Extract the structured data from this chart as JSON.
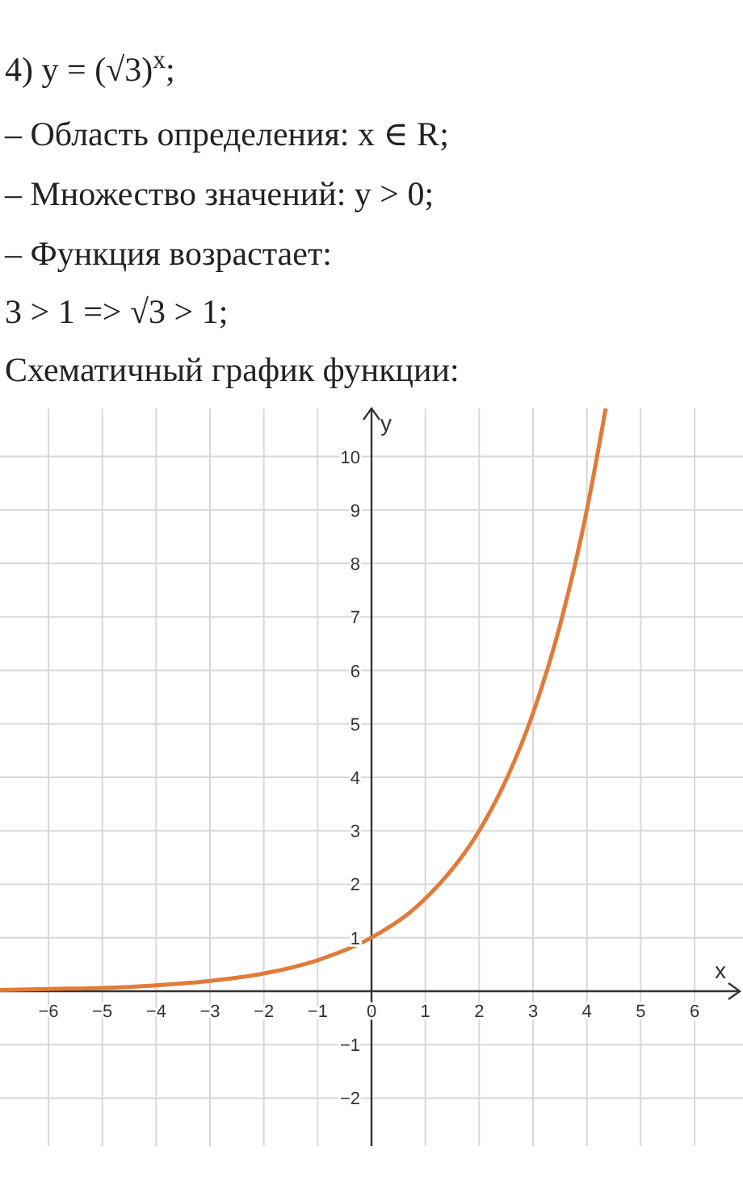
{
  "chart_data": {
    "type": "line",
    "title": "4) y = (√3)$^{x}$;",
    "annotations": [
      "– Область определения:  x ∈ R;",
      "– Множество значений:  y > 0;",
      "– Функция возрастает:",
      "3 > 1   =>   √3 > 1;",
      "Схематичный график функции:"
    ],
    "xlabel": "x",
    "ylabel": "y",
    "x": [
      -6.9,
      -6,
      -5,
      -4,
      -3,
      -2,
      -1,
      0,
      1,
      2,
      2.5,
      3,
      3.5,
      4,
      4.35
    ],
    "series": [
      {
        "color": "#e07b39",
        "values": [
          0.02,
          0.04,
          0.06,
          0.11,
          0.19,
          0.33,
          0.58,
          1,
          1.73,
          3,
          3.95,
          5.2,
          6.84,
          9,
          10.9
        ]
      }
    ],
    "xlim": [
      -6.9,
      6.9
    ],
    "ylim": [
      -2.9,
      10.9
    ],
    "xticks": [
      -6,
      -5,
      -4,
      -3,
      -2,
      -1,
      0,
      1,
      2,
      3,
      4,
      5,
      6
    ],
    "yticks": [
      -2,
      -1,
      1,
      2,
      3,
      4,
      5,
      6,
      7,
      8,
      9,
      10
    ],
    "grid": true,
    "marker": "none",
    "line_style": "solid"
  }
}
